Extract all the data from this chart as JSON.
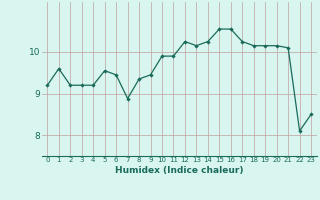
{
  "x": [
    0,
    1,
    2,
    3,
    4,
    5,
    6,
    7,
    8,
    9,
    10,
    11,
    12,
    13,
    14,
    15,
    16,
    17,
    18,
    19,
    20,
    21,
    22,
    23
  ],
  "y": [
    9.2,
    9.6,
    9.2,
    9.2,
    9.2,
    9.55,
    9.45,
    8.88,
    9.35,
    9.45,
    9.9,
    9.9,
    10.25,
    10.15,
    10.25,
    10.55,
    10.55,
    10.25,
    10.15,
    10.15,
    10.15,
    10.1,
    8.1,
    8.5
  ],
  "line_color": "#1a6b5a",
  "marker": "D",
  "marker_size": 2.2,
  "bg_color": "#d8f5f0",
  "grid_color": "#c0a0a0",
  "xlabel": "Humidex (Indice chaleur)",
  "ylim": [
    7.5,
    11.2
  ],
  "xlim": [
    -0.5,
    23.5
  ],
  "yticks": [
    8,
    9,
    10
  ],
  "xticks": [
    0,
    1,
    2,
    3,
    4,
    5,
    6,
    7,
    8,
    9,
    10,
    11,
    12,
    13,
    14,
    15,
    16,
    17,
    18,
    19,
    20,
    21,
    22,
    23
  ]
}
